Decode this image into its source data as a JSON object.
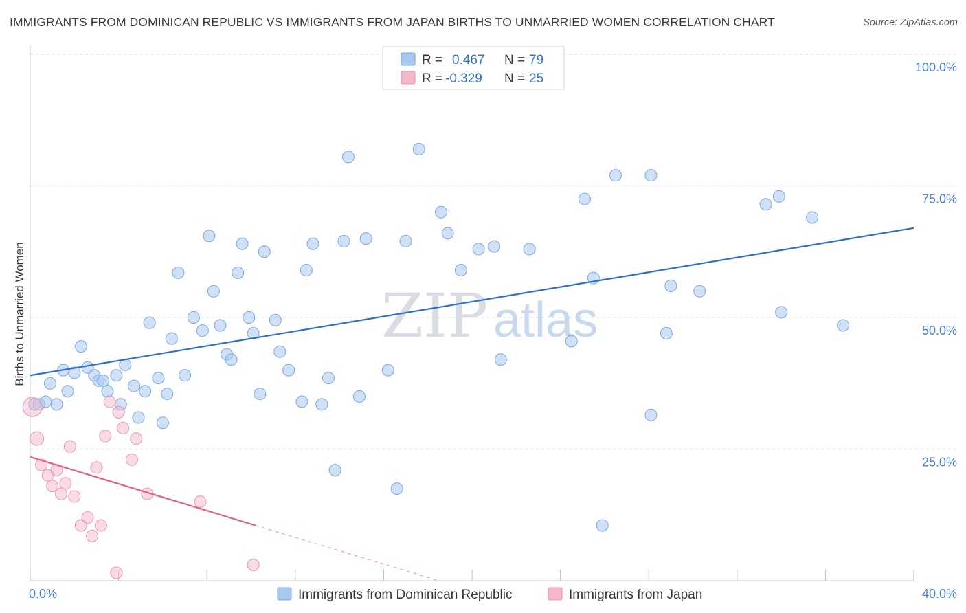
{
  "title": "IMMIGRANTS FROM DOMINICAN REPUBLIC VS IMMIGRANTS FROM JAPAN BIRTHS TO UNMARRIED WOMEN CORRELATION CHART",
  "source": "Source: ZipAtlas.com",
  "watermark": {
    "zip": "ZIP",
    "atlas": "atlas"
  },
  "legend_top": [
    {
      "r_label": "R =",
      "r_value": "0.467",
      "n_label": "N =",
      "n_value": "79",
      "color": "#a9c8f0"
    },
    {
      "r_label": "R =",
      "r_value": "-0.329",
      "n_label": "N =",
      "n_value": "25",
      "color": "#f5b8cb"
    }
  ],
  "chart_data": {
    "type": "scatter",
    "ylabel": "Births to Unmarried Women",
    "xlim": [
      0,
      40
    ],
    "ylim": [
      0,
      100
    ],
    "x_tick_labels": [
      "0.0%",
      "40.0%"
    ],
    "y_tick_labels": [
      "100.0%",
      "75.0%",
      "50.0%",
      "25.0%"
    ],
    "y_ticks": [
      100,
      75,
      50,
      25
    ],
    "grid": true,
    "series": [
      {
        "name": "Immigrants from Dominican Republic",
        "color": "#a9c8f0",
        "stroke": "#7aa7e0",
        "trend": {
          "x0": 0,
          "y0": 39,
          "x1": 40,
          "y1": 67,
          "color": "#2f6fcc",
          "dashed_to": null
        },
        "points": [
          [
            0.2,
            33.5
          ],
          [
            0.4,
            33.5
          ],
          [
            0.7,
            34
          ],
          [
            0.9,
            37.5
          ],
          [
            1.2,
            33.5
          ],
          [
            1.5,
            40
          ],
          [
            1.7,
            36
          ],
          [
            2.0,
            39.5
          ],
          [
            2.3,
            44.5
          ],
          [
            2.6,
            40.5
          ],
          [
            2.9,
            39
          ],
          [
            3.1,
            38
          ],
          [
            3.3,
            38
          ],
          [
            3.5,
            36
          ],
          [
            3.9,
            39
          ],
          [
            4.1,
            33.5
          ],
          [
            4.3,
            41
          ],
          [
            4.7,
            37
          ],
          [
            4.9,
            31
          ],
          [
            5.2,
            36
          ],
          [
            5.4,
            49
          ],
          [
            5.8,
            38.5
          ],
          [
            6.0,
            30
          ],
          [
            6.2,
            35.5
          ],
          [
            6.4,
            46
          ],
          [
            6.7,
            58.5
          ],
          [
            7.0,
            39
          ],
          [
            7.4,
            50
          ],
          [
            7.8,
            47.5
          ],
          [
            8.1,
            65.5
          ],
          [
            8.3,
            55
          ],
          [
            8.6,
            48.5
          ],
          [
            8.9,
            43
          ],
          [
            9.1,
            42
          ],
          [
            9.4,
            58.5
          ],
          [
            9.6,
            64
          ],
          [
            9.9,
            50
          ],
          [
            10.1,
            47
          ],
          [
            10.4,
            35.5
          ],
          [
            10.6,
            62.5
          ],
          [
            11.1,
            49.5
          ],
          [
            11.3,
            43.5
          ],
          [
            11.7,
            40
          ],
          [
            12.3,
            34
          ],
          [
            12.5,
            59
          ],
          [
            12.8,
            64
          ],
          [
            13.2,
            33.5
          ],
          [
            13.5,
            38.5
          ],
          [
            13.8,
            21
          ],
          [
            14.2,
            64.5
          ],
          [
            14.4,
            80.5
          ],
          [
            14.9,
            35
          ],
          [
            15.2,
            65
          ],
          [
            16.2,
            40
          ],
          [
            16.6,
            17.5
          ],
          [
            17.0,
            64.5
          ],
          [
            17.6,
            82
          ],
          [
            18.6,
            70
          ],
          [
            18.9,
            66
          ],
          [
            19.5,
            59
          ],
          [
            20.3,
            63
          ],
          [
            21.0,
            63.5
          ],
          [
            21.3,
            42
          ],
          [
            22.6,
            63
          ],
          [
            24.5,
            45.5
          ],
          [
            25.1,
            72.5
          ],
          [
            25.5,
            57.5
          ],
          [
            25.9,
            10.5
          ],
          [
            26.5,
            77
          ],
          [
            28.1,
            77
          ],
          [
            28.1,
            31.5
          ],
          [
            28.8,
            47
          ],
          [
            29.0,
            56
          ],
          [
            30.3,
            55
          ],
          [
            33.3,
            71.5
          ],
          [
            33.9,
            73
          ],
          [
            34.0,
            51
          ],
          [
            35.4,
            69
          ],
          [
            36.8,
            48.5
          ]
        ]
      },
      {
        "name": "Immigrants from Japan",
        "color": "#f5b8cb",
        "stroke": "#e995b0",
        "trend": {
          "x0": 0,
          "y0": 23.5,
          "x1": 10.2,
          "y1": 10.5,
          "color": "#e0608f",
          "dash_x1": 18.5,
          "dash_y1": 0
        },
        "points": [
          [
            0.1,
            33
          ],
          [
            0.3,
            27
          ],
          [
            0.5,
            22
          ],
          [
            0.8,
            20
          ],
          [
            1.0,
            18
          ],
          [
            1.2,
            21
          ],
          [
            1.4,
            16.5
          ],
          [
            1.6,
            18.5
          ],
          [
            1.8,
            25.5
          ],
          [
            2.0,
            16
          ],
          [
            2.3,
            10.5
          ],
          [
            2.6,
            12
          ],
          [
            2.8,
            8.5
          ],
          [
            3.0,
            21.5
          ],
          [
            3.2,
            10.5
          ],
          [
            3.4,
            27.5
          ],
          [
            3.6,
            34
          ],
          [
            3.9,
            1.5
          ],
          [
            4.0,
            32
          ],
          [
            4.2,
            29
          ],
          [
            4.6,
            23
          ],
          [
            4.8,
            27
          ],
          [
            5.3,
            16.5
          ],
          [
            7.7,
            15
          ],
          [
            10.1,
            3
          ]
        ]
      }
    ]
  },
  "legend_bottom": [
    {
      "label": "Immigrants from Dominican Republic",
      "color": "#a9c8f0"
    },
    {
      "label": "Immigrants from Japan",
      "color": "#f5b8cb"
    }
  ]
}
